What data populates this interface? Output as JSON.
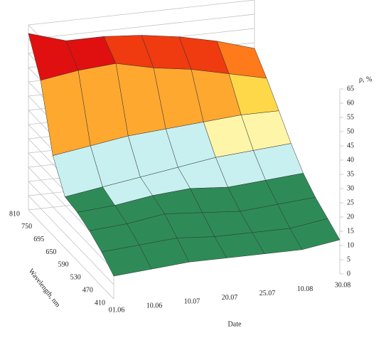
{
  "chart_data": {
    "type": "surface3d",
    "x_label": "Date",
    "y_label": "Wavelength, nm",
    "z_label": "ρ, %",
    "dates": [
      "01.06",
      "10.06",
      "10.07",
      "20.07",
      "25.07",
      "10.08",
      "30.08"
    ],
    "wavelengths": [
      "410",
      "470",
      "530",
      "590",
      "650",
      "695",
      "750",
      "810"
    ],
    "values": [
      [
        8,
        9,
        10,
        10,
        10,
        10,
        12
      ],
      [
        12,
        13,
        14,
        13,
        13,
        13,
        15
      ],
      [
        15,
        16,
        18,
        17,
        16,
        17,
        18
      ],
      [
        17,
        18,
        20,
        21,
        20,
        21,
        22
      ],
      [
        18,
        20,
        22,
        24,
        26,
        27,
        28
      ],
      [
        28,
        30,
        32,
        33,
        34,
        35,
        35
      ],
      [
        50,
        52,
        53,
        50,
        48,
        45,
        42
      ],
      [
        62,
        58,
        58,
        57,
        55,
        52,
        48
      ]
    ],
    "zlim": [
      0,
      65
    ],
    "zticks": [
      0,
      5,
      10,
      15,
      20,
      25,
      30,
      35,
      40,
      45,
      50,
      55,
      60,
      65
    ],
    "levels": [
      10,
      20,
      30,
      35,
      40,
      45,
      50,
      55
    ],
    "level_colors": [
      "#3a66e0",
      "#2e8b57",
      "#c8f0f0",
      "#fff5a8",
      "#ffd84a",
      "#ffa830",
      "#ff7a1a",
      "#f03a10",
      "#e01010"
    ],
    "grid": true
  }
}
